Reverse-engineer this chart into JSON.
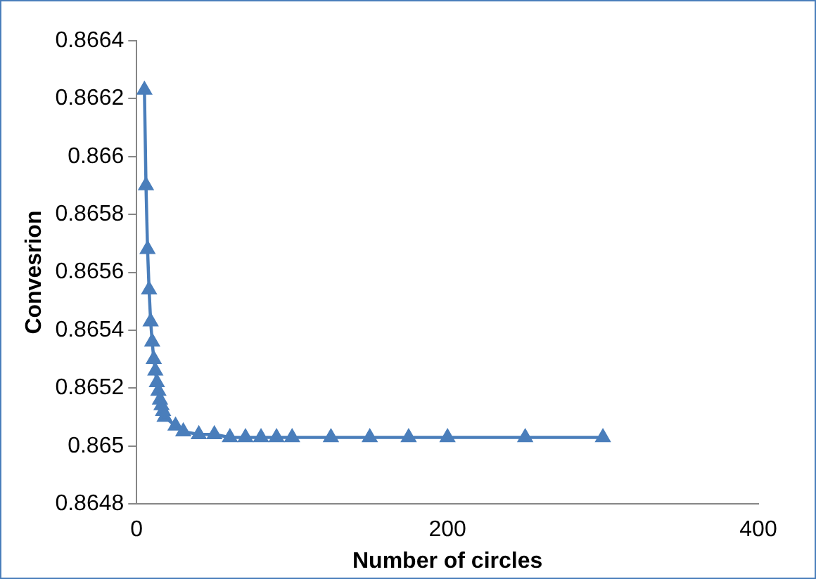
{
  "chart_data": {
    "type": "line",
    "xlabel": "Number of circles",
    "ylabel": "Convesrion",
    "series": [
      {
        "color": "#4a7ebb",
        "x": [
          5,
          6,
          7,
          8,
          9,
          10,
          11,
          12,
          13,
          14,
          15,
          16,
          17,
          18,
          25,
          30,
          40,
          50,
          60,
          70,
          80,
          90,
          100,
          125,
          150,
          175,
          200,
          250,
          300
        ],
        "values": [
          0.86623,
          0.8659,
          0.86568,
          0.86554,
          0.86543,
          0.86536,
          0.8653,
          0.86526,
          0.86522,
          0.86519,
          0.86516,
          0.86514,
          0.86512,
          0.8651,
          0.86507,
          0.86505,
          0.86504,
          0.86504,
          0.86503,
          0.86503,
          0.86503,
          0.86503,
          0.86503,
          0.86503,
          0.86503,
          0.86503,
          0.86503,
          0.86503,
          0.86503
        ]
      }
    ],
    "xlim": [
      0,
      400
    ],
    "xticks": [
      0,
      200,
      400
    ],
    "ylim": [
      0.8648,
      0.8664
    ],
    "yticks": [
      0.8648,
      0.865,
      0.8652,
      0.8654,
      0.8656,
      0.8658,
      0.866,
      0.8662,
      0.8664
    ],
    "marker": "triangle",
    "line_style": "solid",
    "grid": false,
    "legend": false
  }
}
